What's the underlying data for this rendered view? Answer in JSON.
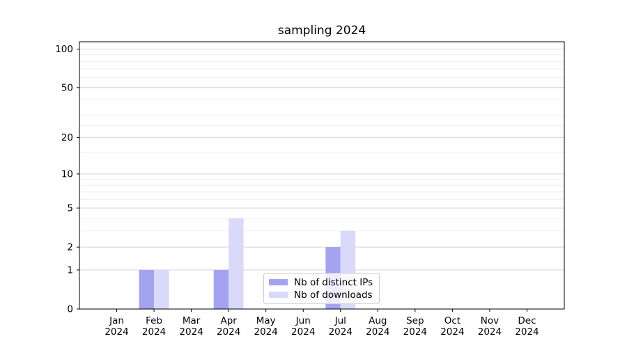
{
  "title": "sampling 2024",
  "chart_data": {
    "type": "bar",
    "scale": "log1p",
    "grid": "horizontal-major-and-minor",
    "months": [
      "Jan",
      "Feb",
      "Mar",
      "Apr",
      "May",
      "Jun",
      "Jul",
      "Aug",
      "Sep",
      "Oct",
      "Nov",
      "Dec"
    ],
    "year_label": "2024",
    "series": [
      {
        "name": "Nb of distinct IPs",
        "color": "#a3a3ef",
        "values": [
          0,
          1,
          0,
          1,
          0,
          0,
          2,
          0,
          0,
          0,
          0,
          0
        ]
      },
      {
        "name": "Nb of downloads",
        "color": "#d9d9f9",
        "values": [
          0,
          1,
          0,
          4,
          0,
          0,
          3,
          0,
          0,
          0,
          0,
          0
        ]
      }
    ],
    "y_ticks": [
      0,
      1,
      2,
      5,
      10,
      20,
      50,
      100
    ],
    "y_minor_ticks": [
      3,
      4,
      6,
      7,
      8,
      9,
      15,
      25,
      30,
      40,
      60,
      70,
      80,
      90
    ],
    "y_max": 114,
    "ylim": [
      0,
      114
    ],
    "legend_position": "lower center",
    "colors": {
      "grid_major": "#d4d4d4",
      "grid_minor": "#efefef",
      "spine": "#000000",
      "legend_border": "#cccccc"
    }
  }
}
